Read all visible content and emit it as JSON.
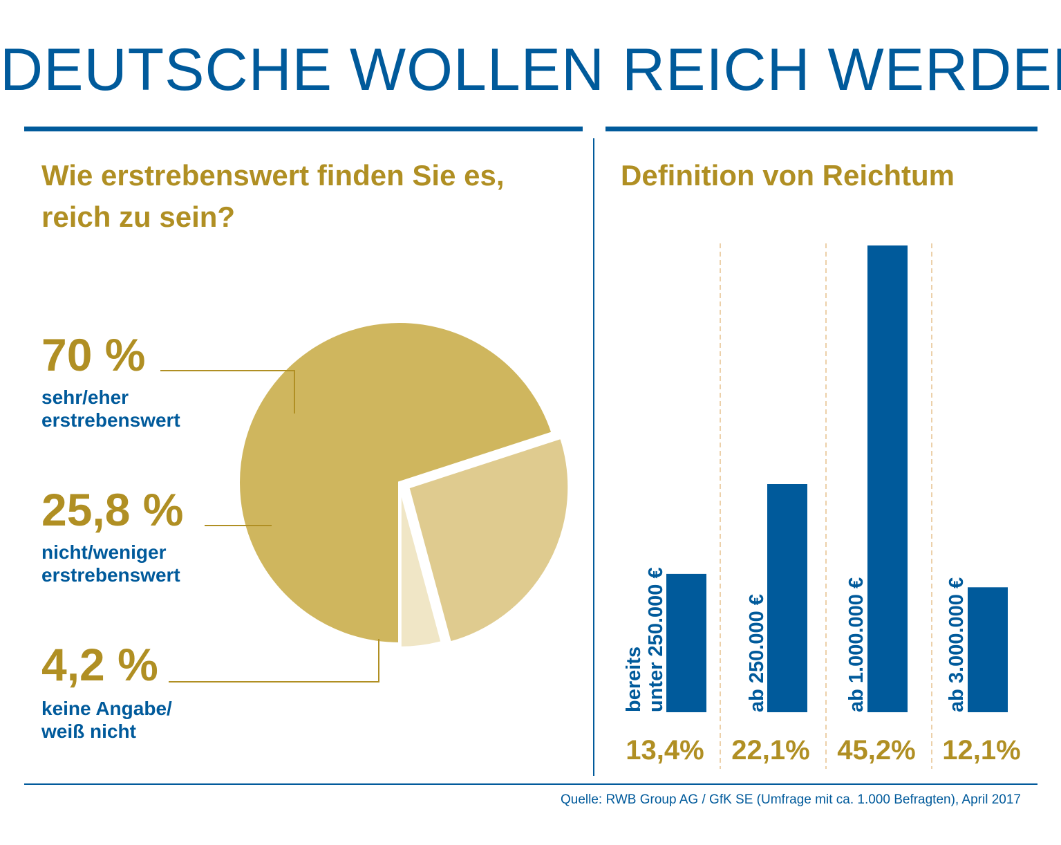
{
  "title": "DEUTSCHE WOLLEN REICH WERDEN",
  "left_heading": [
    "Wie erstrebenswert finden Sie es,",
    "reich zu sein?"
  ],
  "right_heading": "Definition von Reichtum",
  "source": "Quelle: RWB Group AG / GfK SE (Umfrage mit ca. 1.000 Befragten), April 2017",
  "colors": {
    "blue": "#005a9b",
    "gold_text": "#b08f23",
    "pie_dark": "#cfb65e",
    "pie_mid": "#dfcb8f",
    "pie_light": "#f0e6c6",
    "divider_dashes": "#e0b070"
  },
  "pie_labels": [
    {
      "pct": "70 %",
      "lines": [
        "sehr/eher",
        "erstrebenswert"
      ]
    },
    {
      "pct": "25,8 %",
      "lines": [
        "nicht/weniger",
        "erstrebenswert"
      ]
    },
    {
      "pct": "4,2 %",
      "lines": [
        "keine Angabe/",
        "weiß nicht"
      ]
    }
  ],
  "chart_data": [
    {
      "type": "pie",
      "title": "Wie erstrebenswert finden Sie es, reich zu sein?",
      "categories": [
        "sehr/eher erstrebenswert",
        "nicht/weniger erstrebenswert",
        "keine Angabe/ weiß nicht"
      ],
      "values": [
        70,
        25.8,
        4.2
      ],
      "value_labels": [
        "70 %",
        "25,8 %",
        "4,2 %"
      ]
    },
    {
      "type": "bar",
      "title": "Definition von Reichtum",
      "categories": [
        [
          "bereits",
          "unter 250.000 €"
        ],
        [
          "ab 250.000 €"
        ],
        [
          "ab 1.000.000 €"
        ],
        [
          "ab 3.000.000 €"
        ]
      ],
      "values": [
        13.4,
        22.1,
        45.2,
        12.1
      ],
      "value_labels": [
        "13,4%",
        "22,1%",
        "45,2%",
        "12,1%"
      ]
    }
  ]
}
